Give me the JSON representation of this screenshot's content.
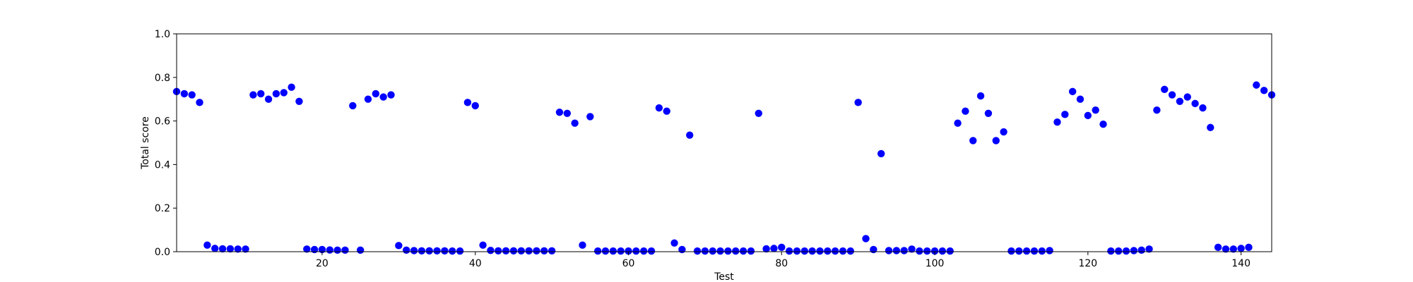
{
  "chart_data": {
    "type": "scatter",
    "title": "",
    "xlabel": "Test",
    "ylabel": "Total score",
    "xlim": [
      1,
      144
    ],
    "ylim": [
      0.0,
      1.0
    ],
    "grid": false,
    "color": "#0000ff",
    "xticks": [
      20,
      40,
      60,
      80,
      100,
      120,
      140
    ],
    "yticks": [
      "0.0",
      "0.2",
      "0.4",
      "0.6",
      "0.8",
      "1.0"
    ],
    "x": [
      1,
      2,
      3,
      4,
      5,
      6,
      7,
      8,
      9,
      10,
      11,
      12,
      13,
      14,
      15,
      16,
      17,
      18,
      19,
      20,
      21,
      22,
      23,
      24,
      25,
      26,
      27,
      28,
      29,
      30,
      31,
      32,
      33,
      34,
      35,
      36,
      37,
      38,
      39,
      40,
      41,
      42,
      43,
      44,
      45,
      46,
      47,
      48,
      49,
      50,
      51,
      52,
      53,
      54,
      55,
      56,
      57,
      58,
      59,
      60,
      61,
      62,
      63,
      64,
      65,
      66,
      67,
      68,
      69,
      70,
      71,
      72,
      73,
      74,
      75,
      76,
      77,
      78,
      79,
      80,
      81,
      82,
      83,
      84,
      85,
      86,
      87,
      88,
      89,
      90,
      91,
      92,
      93,
      94,
      95,
      96,
      97,
      98,
      99,
      100,
      101,
      102,
      103,
      104,
      105,
      106,
      107,
      108,
      109,
      110,
      111,
      112,
      113,
      114,
      115,
      116,
      117,
      118,
      119,
      120,
      121,
      122,
      123,
      124,
      125,
      126,
      127,
      128,
      129,
      130,
      131,
      132,
      133,
      134,
      135,
      136,
      137,
      138,
      139,
      140,
      141,
      142,
      143,
      144
    ],
    "y": [
      0.735,
      0.725,
      0.72,
      0.685,
      0.03,
      0.015,
      0.013,
      0.013,
      0.012,
      0.012,
      0.72,
      0.725,
      0.7,
      0.725,
      0.73,
      0.755,
      0.69,
      0.012,
      0.01,
      0.01,
      0.008,
      0.007,
      0.007,
      0.67,
      0.007,
      0.7,
      0.725,
      0.71,
      0.72,
      0.028,
      0.007,
      0.005,
      0.004,
      0.004,
      0.004,
      0.004,
      0.003,
      0.003,
      0.685,
      0.67,
      0.03,
      0.006,
      0.004,
      0.004,
      0.004,
      0.004,
      0.004,
      0.004,
      0.004,
      0.004,
      0.64,
      0.635,
      0.59,
      0.03,
      0.62,
      0.003,
      0.003,
      0.003,
      0.003,
      0.003,
      0.003,
      0.003,
      0.003,
      0.66,
      0.645,
      0.04,
      0.01,
      0.535,
      0.003,
      0.003,
      0.003,
      0.003,
      0.003,
      0.003,
      0.003,
      0.003,
      0.635,
      0.013,
      0.015,
      0.02,
      0.003,
      0.003,
      0.003,
      0.003,
      0.003,
      0.003,
      0.003,
      0.003,
      0.003,
      0.685,
      0.06,
      0.01,
      0.45,
      0.005,
      0.005,
      0.005,
      0.012,
      0.003,
      0.003,
      0.003,
      0.003,
      0.003,
      0.59,
      0.645,
      0.51,
      0.715,
      0.635,
      0.51,
      0.55,
      0.003,
      0.003,
      0.003,
      0.003,
      0.003,
      0.005,
      0.595,
      0.63,
      0.735,
      0.7,
      0.625,
      0.65,
      0.585,
      0.003,
      0.003,
      0.003,
      0.005,
      0.007,
      0.012,
      0.65,
      0.745,
      0.72,
      0.69,
      0.71,
      0.68,
      0.66,
      0.57,
      0.02,
      0.012,
      0.012,
      0.015,
      0.02,
      0.765,
      0.74,
      0.72
    ]
  }
}
